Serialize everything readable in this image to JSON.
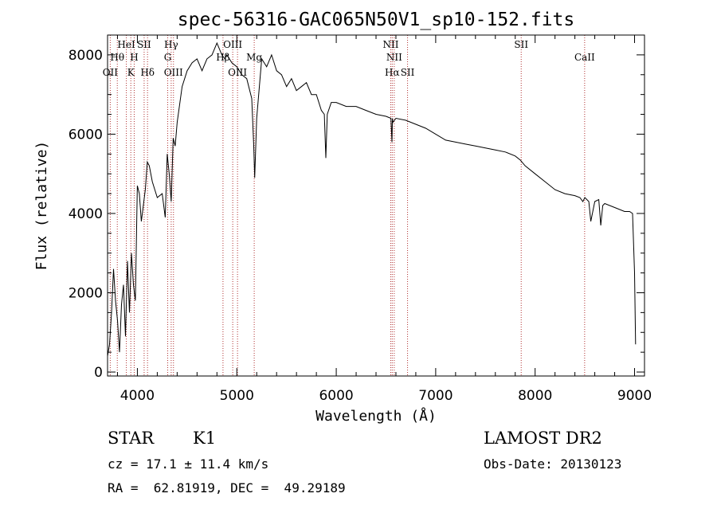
{
  "chart_data": {
    "type": "line",
    "title": "spec-56316-GAC065N50V1_sp10-152.fits",
    "xlabel": "Wavelength (Å)",
    "ylabel": "Flux (relative)",
    "xlim": [
      3700,
      9100
    ],
    "ylim": [
      -100,
      8500
    ],
    "xticks": [
      4000,
      5000,
      6000,
      7000,
      8000,
      9000
    ],
    "yticks": [
      0,
      2000,
      4000,
      6000,
      8000
    ],
    "series": [
      {
        "name": "spectrum",
        "x": [
          3700,
          3720,
          3740,
          3760,
          3780,
          3800,
          3820,
          3840,
          3860,
          3880,
          3900,
          3920,
          3940,
          3960,
          3980,
          4000,
          4020,
          4040,
          4060,
          4080,
          4100,
          4120,
          4150,
          4200,
          4250,
          4280,
          4300,
          4320,
          4340,
          4360,
          4380,
          4400,
          4450,
          4500,
          4550,
          4600,
          4650,
          4700,
          4750,
          4800,
          4850,
          4880,
          4900,
          4950,
          5000,
          5050,
          5100,
          5150,
          5170,
          5180,
          5200,
          5250,
          5300,
          5350,
          5400,
          5450,
          5500,
          5550,
          5600,
          5650,
          5700,
          5750,
          5800,
          5850,
          5880,
          5895,
          5910,
          5950,
          6000,
          6100,
          6200,
          6300,
          6400,
          6500,
          6550,
          6560,
          6565,
          6570,
          6600,
          6700,
          6800,
          6900,
          7000,
          7100,
          7200,
          7300,
          7400,
          7500,
          7600,
          7700,
          7800,
          7850,
          7900,
          8000,
          8100,
          8200,
          8300,
          8400,
          8450,
          8480,
          8500,
          8520,
          8540,
          8560,
          8600,
          8640,
          8660,
          8680,
          8700,
          8800,
          8900,
          8950,
          8980,
          9000,
          9010
        ],
        "y": [
          400,
          700,
          1500,
          2600,
          1800,
          1300,
          500,
          1700,
          2200,
          900,
          2800,
          1500,
          3000,
          2200,
          1800,
          4700,
          4500,
          3800,
          4200,
          4600,
          5300,
          5200,
          4800,
          4400,
          4500,
          3900,
          5500,
          5000,
          4300,
          5900,
          5700,
          6300,
          7200,
          7600,
          7800,
          7900,
          7600,
          7900,
          8000,
          8300,
          8000,
          7900,
          8000,
          7800,
          7700,
          7500,
          7400,
          6900,
          5700,
          4900,
          6400,
          7900,
          7700,
          8000,
          7600,
          7500,
          7200,
          7400,
          7100,
          7200,
          7300,
          7000,
          7000,
          6600,
          6500,
          5400,
          6500,
          6800,
          6800,
          6700,
          6700,
          6600,
          6500,
          6450,
          6400,
          5800,
          6400,
          6300,
          6400,
          6350,
          6250,
          6150,
          6000,
          5850,
          5800,
          5750,
          5700,
          5650,
          5600,
          5550,
          5450,
          5350,
          5200,
          5000,
          4800,
          4600,
          4500,
          4450,
          4400,
          4300,
          4400,
          4350,
          4300,
          3800,
          4300,
          4350,
          3700,
          4200,
          4250,
          4150,
          4050,
          4050,
          4000,
          2500,
          700
        ]
      }
    ],
    "lines": [
      {
        "wl": 3727,
        "label": "OII",
        "row": 3
      },
      {
        "wl": 3798,
        "label": "Hθ",
        "row": 2
      },
      {
        "wl": 3889,
        "label": "HeI",
        "row": 1
      },
      {
        "wl": 3934,
        "label": "K",
        "row": 3
      },
      {
        "wl": 3968,
        "label": "H",
        "row": 2
      },
      {
        "wl": 4068,
        "label": "SII",
        "row": 1
      },
      {
        "wl": 4102,
        "label": "Hδ",
        "row": 3
      },
      {
        "wl": 4305,
        "label": "G",
        "row": 2
      },
      {
        "wl": 4340,
        "label": "Hγ",
        "row": 1
      },
      {
        "wl": 4363,
        "label": "OIII",
        "row": 3
      },
      {
        "wl": 4861,
        "label": "Hβ",
        "row": 2
      },
      {
        "wl": 4959,
        "label": "OIII",
        "row": 1
      },
      {
        "wl": 5007,
        "label": "OIII",
        "row": 3
      },
      {
        "wl": 5175,
        "label": "Mg",
        "row": 2
      },
      {
        "wl": 6548,
        "label": "NII",
        "row": 1
      },
      {
        "wl": 6563,
        "label": "Hα",
        "row": 3
      },
      {
        "wl": 6583,
        "label": "NII",
        "row": 2
      },
      {
        "wl": 6717,
        "label": "SII",
        "row": 3
      },
      {
        "wl": 7860,
        "label": "SII",
        "row": 1
      },
      {
        "wl": 8498,
        "label": "CaII",
        "row": 2
      }
    ]
  },
  "info": {
    "class": "STAR",
    "subclass": "K1",
    "cz": "cz = 17.1 ± 11.4 km/s",
    "radec": "RA =  62.81919, DEC =  49.29189",
    "survey": "LAMOST DR2",
    "obsdate": "Obs-Date: 20130123"
  },
  "colors": {
    "spectrum": "#000000",
    "line_marker": "#b03030"
  }
}
